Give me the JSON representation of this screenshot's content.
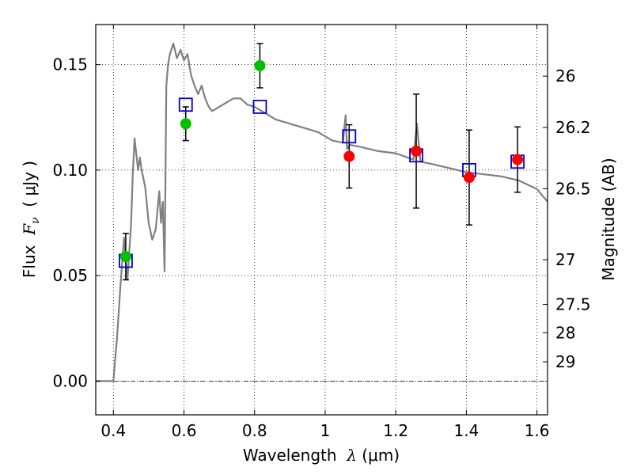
{
  "chart_data": {
    "type": "scatter",
    "xlabel": {
      "prefix": "Wavelength  ",
      "symbol": "λ",
      "unit": " (μm)"
    },
    "ylabel": {
      "prefix": "Flux  ",
      "symbol": "F",
      "subscript": "ν",
      "unit": "  ( μJy )"
    },
    "y2label": "Magnitude (AB)",
    "xlim": [
      0.35,
      1.63
    ],
    "ylim": [
      -0.016,
      0.169
    ],
    "xticks": [
      {
        "value": 0.4,
        "label": "0.4"
      },
      {
        "value": 0.6,
        "label": "0.6"
      },
      {
        "value": 0.8,
        "label": "0.8"
      },
      {
        "value": 1.0,
        "label": "1"
      },
      {
        "value": 1.2,
        "label": "1.2"
      },
      {
        "value": 1.4,
        "label": "1.4"
      },
      {
        "value": 1.6,
        "label": "1.6"
      }
    ],
    "yticks": [
      {
        "value": 0.0,
        "label": "0.00"
      },
      {
        "value": 0.05,
        "label": "0.05"
      },
      {
        "value": 0.1,
        "label": "0.10"
      },
      {
        "value": 0.15,
        "label": "0.15"
      }
    ],
    "right_ticks": [
      {
        "label": "26",
        "mag": 26.0
      },
      {
        "label": "26.2",
        "mag": 26.2
      },
      {
        "label": "26.5",
        "mag": 26.5
      },
      {
        "label": "27",
        "mag": 27.0
      },
      {
        "label": "27.5",
        "mag": 27.5
      },
      {
        "label": "28",
        "mag": 28.0
      },
      {
        "label": "29",
        "mag": 29.0
      }
    ],
    "grid": true,
    "colors": {
      "spectrum": "#808080",
      "green_points": "#00c000",
      "red_points": "#ff0000",
      "model_squares": "#0000cc",
      "errorbars": "#000000"
    },
    "spectrum": {
      "x": [
        0.35,
        0.4,
        0.405,
        0.41,
        0.42,
        0.43,
        0.44,
        0.45,
        0.455,
        0.46,
        0.47,
        0.475,
        0.48,
        0.49,
        0.5,
        0.51,
        0.52,
        0.53,
        0.535,
        0.54,
        0.545,
        0.55,
        0.555,
        0.56,
        0.57,
        0.58,
        0.59,
        0.6,
        0.61,
        0.62,
        0.63,
        0.64,
        0.65,
        0.66,
        0.67,
        0.68,
        0.7,
        0.72,
        0.74,
        0.76,
        0.78,
        0.8,
        0.82,
        0.84,
        0.86,
        0.88,
        0.9,
        0.92,
        0.94,
        0.96,
        0.98,
        1.0,
        1.02,
        1.05,
        1.058,
        1.062,
        1.07,
        1.1,
        1.15,
        1.2,
        1.25,
        1.26,
        1.27,
        1.3,
        1.35,
        1.4,
        1.45,
        1.5,
        1.55,
        1.6,
        1.63
      ],
      "y": [
        0.0,
        0.0,
        0.01,
        0.02,
        0.045,
        0.068,
        0.048,
        0.074,
        0.098,
        0.115,
        0.1,
        0.106,
        0.1,
        0.092,
        0.075,
        0.067,
        0.072,
        0.09,
        0.075,
        0.085,
        0.052,
        0.14,
        0.15,
        0.155,
        0.16,
        0.153,
        0.157,
        0.152,
        0.155,
        0.145,
        0.14,
        0.136,
        0.14,
        0.134,
        0.13,
        0.128,
        0.13,
        0.132,
        0.134,
        0.134,
        0.131,
        0.13,
        0.128,
        0.126,
        0.124,
        0.123,
        0.122,
        0.121,
        0.12,
        0.119,
        0.118,
        0.116,
        0.114,
        0.113,
        0.126,
        0.11,
        0.112,
        0.111,
        0.109,
        0.108,
        0.105,
        0.122,
        0.104,
        0.103,
        0.101,
        0.099,
        0.098,
        0.097,
        0.095,
        0.091,
        0.085
      ]
    },
    "green_points": {
      "x": [
        0.435,
        0.605,
        0.815
      ],
      "y": [
        0.059,
        0.122,
        0.1495
      ],
      "yerr": [
        0.011,
        0.008,
        0.0105
      ]
    },
    "red_points": {
      "x": [
        1.068,
        1.258,
        1.408,
        1.545
      ],
      "y": [
        0.1065,
        0.109,
        0.0965,
        0.105
      ],
      "yerr": [
        0.015,
        0.027,
        0.0225,
        0.0155
      ]
    },
    "model_squares": {
      "x": [
        0.435,
        0.605,
        0.815,
        1.068,
        1.258,
        1.408,
        1.545
      ],
      "y": [
        0.057,
        0.131,
        0.13,
        0.116,
        0.107,
        0.1,
        0.104
      ]
    }
  }
}
